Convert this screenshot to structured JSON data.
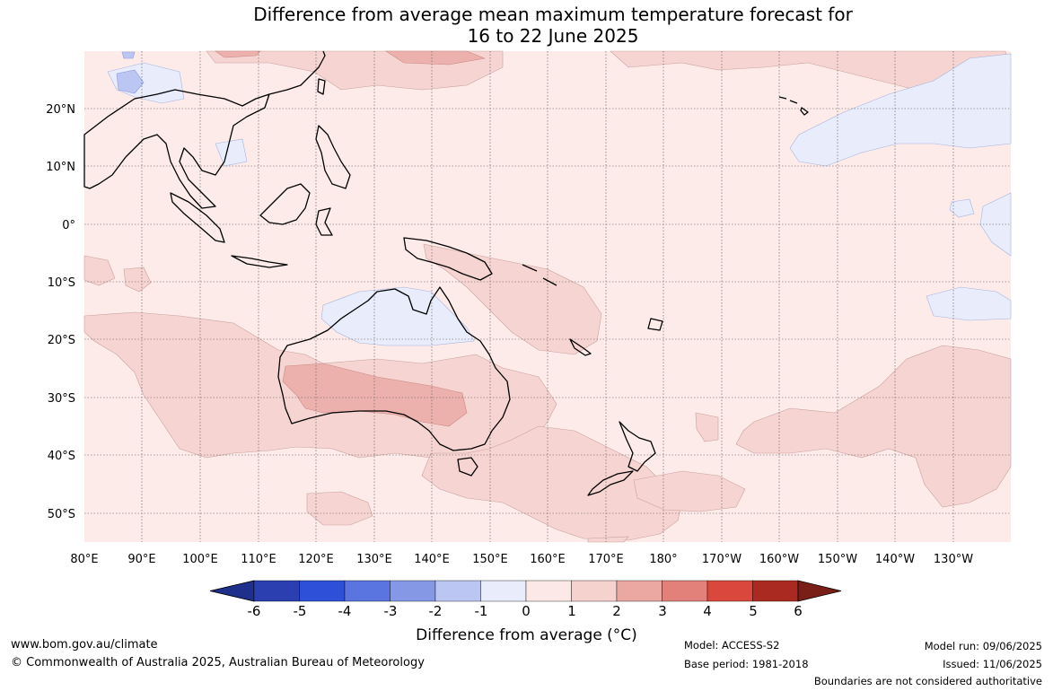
{
  "title": {
    "line1": "Difference from average mean maximum temperature forecast for",
    "line2": "16 to 22 June 2025"
  },
  "map": {
    "lon_labels": [
      "80°E",
      "90°E",
      "100°E",
      "110°E",
      "120°E",
      "130°E",
      "140°E",
      "150°E",
      "160°E",
      "170°E",
      "180°",
      "170°W",
      "160°W",
      "150°W",
      "140°W",
      "130°W"
    ],
    "lat_labels": [
      "20°N",
      "10°N",
      "0°",
      "10°S",
      "20°S",
      "30°S",
      "40°S",
      "50°S"
    ]
  },
  "colorbar": {
    "tick_labels": [
      "-6",
      "-5",
      "-4",
      "-3",
      "-2",
      "-1",
      "0",
      "1",
      "2",
      "3",
      "4",
      "5",
      "6"
    ],
    "colors": [
      "#1f2f8c",
      "#2b3fb0",
      "#2e4fd8",
      "#5a74e0",
      "#8598e6",
      "#bcc6f2",
      "#e8ecfb",
      "#fce9e7",
      "#f6d2cf",
      "#eba7a2",
      "#e2807a",
      "#d9473d",
      "#aa2a22",
      "#7a1f18"
    ],
    "title": "Difference from average (°C)"
  },
  "footer": {
    "site": "www.bom.gov.au/climate",
    "copyright": "© Commonwealth of Australia 2025, Australian Bureau of Meteorology",
    "model": "Model: ACCESS-S2",
    "base_period": "Base period: 1981-2018",
    "model_run": "Model run: 09/06/2025",
    "issued": "Issued: 11/06/2025",
    "disclaimer": "Boundaries are not considered authoritative"
  }
}
